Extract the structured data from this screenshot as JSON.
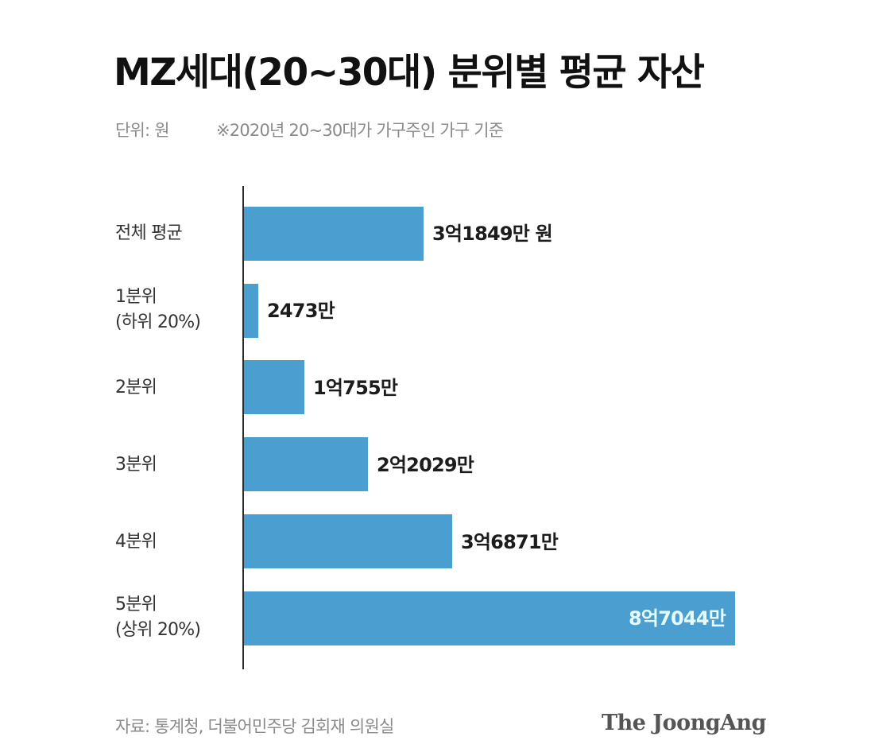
{
  "header": {
    "title": "MZ세대(20~30대) 분위별 평균 자산",
    "unit": "단위: 원",
    "note": "※2020년 20~30대가 가구주인 가구 기준"
  },
  "footer": {
    "source": "자료: 통계청, 더불어민주당 김회재 의원실",
    "logo": "The JoongAng"
  },
  "colors": {
    "bar": "#4a9fd0",
    "axis": "#2a2a2a",
    "inside_label": "#e8fbff"
  },
  "rows": [
    {
      "label_line1": "전체 평균",
      "label_line2": "",
      "value_label": "3억1849만 원"
    },
    {
      "label_line1": "1분위",
      "label_line2": "(하위 20%)",
      "value_label": "2473만"
    },
    {
      "label_line1": "2분위",
      "label_line2": "",
      "value_label": "1억755만"
    },
    {
      "label_line1": "3분위",
      "label_line2": "",
      "value_label": "2억2029만"
    },
    {
      "label_line1": "4분위",
      "label_line2": "",
      "value_label": "3억6871만"
    },
    {
      "label_line1": "5분위",
      "label_line2": "(상위 20%)",
      "value_label": "8억7044만"
    }
  ],
  "chart_data": {
    "type": "bar",
    "orientation": "horizontal",
    "title": "MZ세대(20~30대) 분위별 평균 자산",
    "subtitle": "단위: 원  ※2020년 20~30대가 가구주인 가구 기준",
    "categories": [
      "전체 평균",
      "1분위 (하위 20%)",
      "2분위",
      "3분위",
      "4분위",
      "5분위 (상위 20%)"
    ],
    "values": [
      318490000,
      24730000,
      107550000,
      220290000,
      368710000,
      870440000
    ],
    "value_labels": [
      "3억1849만 원",
      "2473만",
      "1억755만",
      "2억2029만",
      "3억6871만",
      "8억7044만"
    ],
    "xlabel": "",
    "ylabel": "",
    "grid": false,
    "legend": null,
    "source": "자료: 통계청, 더불어민주당 김회재 의원실"
  }
}
